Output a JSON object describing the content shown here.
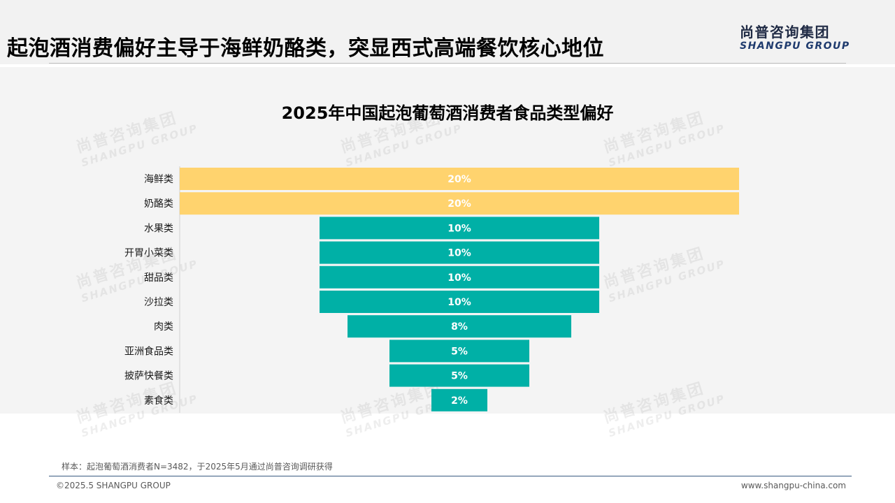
{
  "header": {
    "title": "起泡酒消费偏好主导于海鲜奶酪类，突显西式高端餐饮核心地位",
    "logo_cn": "尚普咨询集团",
    "logo_en": "SHANGPU GROUP"
  },
  "watermark": {
    "cn": "尚普咨询集团",
    "en": "SHANGPU GROUP"
  },
  "chart_data": {
    "type": "bar",
    "title": "2025年中国起泡葡萄酒消费者食品类型偏好",
    "categories": [
      "海鲜类",
      "奶酪类",
      "水果类",
      "开胃小菜类",
      "甜品类",
      "沙拉类",
      "肉类",
      "亚洲食品类",
      "披萨快餐类",
      "素食类"
    ],
    "values": [
      20,
      20,
      10,
      10,
      10,
      10,
      8,
      5,
      5,
      2
    ],
    "value_labels": [
      "20%",
      "20%",
      "10%",
      "10%",
      "10%",
      "10%",
      "8%",
      "5%",
      "5%",
      "2%"
    ],
    "highlight_count": 2,
    "colors": {
      "highlight": "#ffd36e",
      "base": "#00b0a6"
    },
    "xlabel": "",
    "ylabel": "",
    "layout": "funnel-centered"
  },
  "footer": {
    "note": "样本：起泡葡萄酒消费者N=3482，于2025年5月通过尚普咨询调研获得",
    "copyright": "©2025.5 SHANGPU GROUP",
    "website": "www.shangpu-china.com"
  }
}
